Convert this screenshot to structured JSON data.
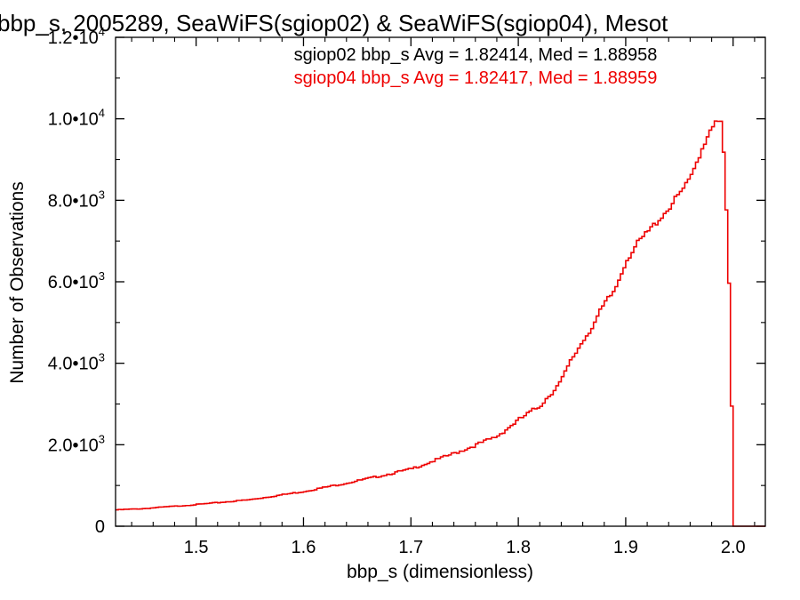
{
  "chart_data": {
    "type": "line",
    "title": "bbp_s, 2005289, SeaWiFS(sgiop02) & SeaWiFS(sgiop04), Mesot",
    "xlabel": "bbp_s (dimensionless)",
    "ylabel": "Number of Observations",
    "xlim": [
      1.425,
      2.03
    ],
    "ylim": [
      0,
      12000
    ],
    "x_ticks": [
      {
        "value": 1.5,
        "label": "1.5"
      },
      {
        "value": 1.6,
        "label": "1.6"
      },
      {
        "value": 1.7,
        "label": "1.7"
      },
      {
        "value": 1.8,
        "label": "1.8"
      },
      {
        "value": 1.9,
        "label": "1.9"
      },
      {
        "value": 2.0,
        "label": "2.0"
      }
    ],
    "y_ticks": [
      {
        "value": 0,
        "mantissa": "0",
        "exp": ""
      },
      {
        "value": 2000,
        "mantissa": "2.0•10",
        "exp": "3"
      },
      {
        "value": 4000,
        "mantissa": "4.0•10",
        "exp": "3"
      },
      {
        "value": 6000,
        "mantissa": "6.0•10",
        "exp": "3"
      },
      {
        "value": 8000,
        "mantissa": "8.0•10",
        "exp": "3"
      },
      {
        "value": 10000,
        "mantissa": "1.0•10",
        "exp": "4"
      },
      {
        "value": 12000,
        "mantissa": "1.2•10",
        "exp": "4"
      }
    ],
    "annotations": [
      {
        "text": "sgiop02 bbp_s Avg = 1.82414, Med = 1.88958",
        "color": "#000000"
      },
      {
        "text": "sgiop04 bbp_s Avg = 1.82417, Med = 1.88959",
        "color": "#ee0000"
      }
    ],
    "series": [
      {
        "color": "#ee0000",
        "step": true,
        "x": [
          1.425,
          1.45,
          1.5,
          1.55,
          1.6,
          1.65,
          1.7,
          1.75,
          1.78,
          1.8,
          1.82,
          1.84,
          1.85,
          1.86,
          1.87,
          1.88,
          1.89,
          1.9,
          1.91,
          1.92,
          1.93,
          1.94,
          1.95,
          1.96,
          1.97,
          1.975,
          1.98,
          1.985,
          1.99,
          1.995,
          1.9975,
          1.9995,
          2.0,
          2.01,
          2.03
        ],
        "y": [
          400,
          430,
          530,
          650,
          850,
          1110,
          1400,
          1880,
          2200,
          2600,
          2950,
          3550,
          4100,
          4550,
          4950,
          5430,
          5800,
          6500,
          6900,
          7200,
          7500,
          7800,
          8150,
          8500,
          9200,
          9500,
          9850,
          9900,
          9900,
          7000,
          4800,
          1800,
          0,
          0,
          0
        ]
      }
    ]
  }
}
